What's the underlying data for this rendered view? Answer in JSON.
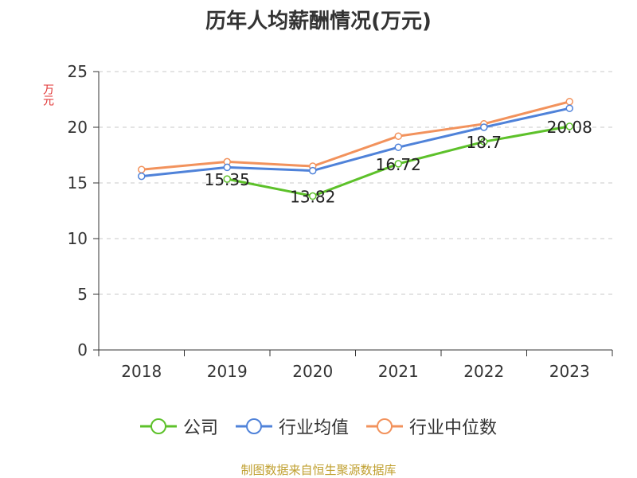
{
  "chart_data": {
    "type": "line",
    "title": "历年人均薪酬情况(万元)",
    "ylabel": "万元",
    "xlabel": "",
    "categories": [
      "2018",
      "2019",
      "2020",
      "2021",
      "2022",
      "2023"
    ],
    "ylim": [
      0,
      25
    ],
    "yticks": [
      0,
      5,
      10,
      15,
      20,
      25
    ],
    "grid": true,
    "legend_position": "bottom",
    "series": [
      {
        "name": "公司",
        "color": "#5dc12a",
        "values": [
          null,
          15.35,
          13.82,
          16.72,
          18.7,
          20.08
        ],
        "labels": [
          "",
          "15.35",
          "13.82",
          "16.72",
          "18.7",
          "20.08"
        ]
      },
      {
        "name": "行业均值",
        "color": "#4f82d9",
        "values": [
          15.6,
          16.4,
          16.1,
          18.2,
          20.0,
          21.7
        ],
        "labels": []
      },
      {
        "name": "行业中位数",
        "color": "#f2925c",
        "values": [
          16.2,
          16.9,
          16.5,
          19.2,
          20.3,
          22.3
        ],
        "labels": []
      }
    ]
  },
  "source": "制图数据来自恒生聚源数据库"
}
